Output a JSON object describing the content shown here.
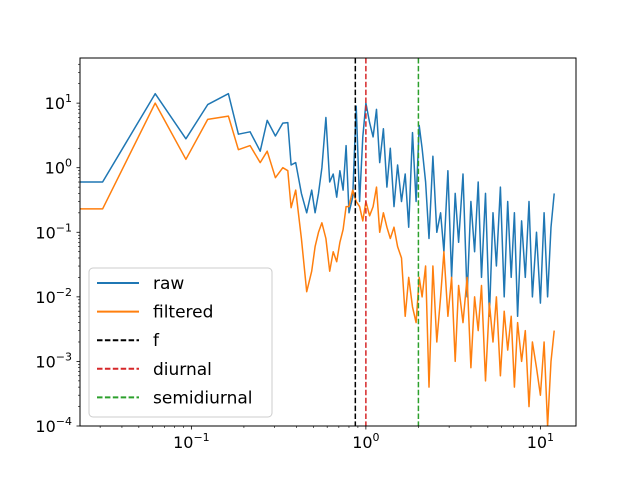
{
  "chart_data": {
    "type": "line",
    "title": "",
    "xlabel": "",
    "ylabel": "",
    "xscale": "log",
    "yscale": "log",
    "xlim": [
      0.023,
      16
    ],
    "ylim": [
      0.0001,
      50
    ],
    "x_tick_labels": [
      {
        "value": 0.1,
        "base": "10",
        "exp": "−1"
      },
      {
        "value": 1,
        "base": "10",
        "exp": "0"
      },
      {
        "value": 10,
        "base": "10",
        "exp": "1"
      }
    ],
    "y_tick_labels": [
      {
        "value": 0.0001,
        "base": "10",
        "exp": "−4"
      },
      {
        "value": 0.001,
        "base": "10",
        "exp": "−3"
      },
      {
        "value": 0.01,
        "base": "10",
        "exp": "−2"
      },
      {
        "value": 0.1,
        "base": "10",
        "exp": "−1"
      },
      {
        "value": 1,
        "base": "10",
        "exp": "0"
      },
      {
        "value": 10,
        "base": "10",
        "exp": "1"
      }
    ],
    "grid": false,
    "legend_position": "lower-left",
    "series": [
      {
        "name": "raw",
        "color": "#1f77b4",
        "x": [
          0.023,
          0.031,
          0.062,
          0.093,
          0.124,
          0.163,
          0.186,
          0.217,
          0.248,
          0.272,
          0.303,
          0.334,
          0.357,
          0.373,
          0.396,
          0.427,
          0.458,
          0.489,
          0.512,
          0.535,
          0.56,
          0.59,
          0.62,
          0.65,
          0.68,
          0.71,
          0.74,
          0.77,
          0.8,
          0.84,
          0.88,
          0.92,
          0.96,
          1.0,
          1.05,
          1.1,
          1.15,
          1.2,
          1.26,
          1.32,
          1.38,
          1.45,
          1.52,
          1.6,
          1.68,
          1.76,
          1.85,
          1.94,
          2.02,
          2.1,
          2.2,
          2.3,
          2.42,
          2.55,
          2.68,
          2.8,
          2.95,
          3.1,
          3.25,
          3.4,
          3.6,
          3.8,
          4.0,
          4.2,
          4.4,
          4.6,
          4.85,
          5.1,
          5.35,
          5.6,
          5.9,
          6.2,
          6.5,
          6.8,
          7.1,
          7.4,
          7.8,
          8.2,
          8.6,
          9.0,
          9.5,
          10.0,
          10.5,
          11.0,
          11.5,
          12.0
        ],
        "y": [
          0.6,
          0.6,
          14,
          2.8,
          9.5,
          14,
          3.3,
          3.6,
          1.8,
          5.4,
          3.1,
          4.9,
          5.0,
          1.1,
          1.2,
          0.4,
          0.2,
          0.45,
          0.2,
          0.4,
          1.0,
          6.0,
          0.6,
          0.8,
          0.35,
          0.9,
          0.45,
          2.2,
          0.2,
          0.35,
          9.0,
          0.3,
          3.0,
          10.0,
          5.0,
          3.0,
          8.0,
          1.2,
          4.0,
          0.5,
          2.0,
          0.25,
          1.1,
          0.3,
          0.8,
          0.12,
          3.5,
          0.3,
          4.5,
          2.0,
          0.6,
          0.08,
          1.5,
          0.1,
          0.2,
          0.05,
          0.9,
          0.02,
          0.4,
          0.07,
          0.8,
          0.01,
          0.3,
          0.05,
          0.6,
          0.02,
          0.4,
          0.005,
          0.2,
          0.03,
          0.5,
          0.01,
          0.3,
          0.02,
          0.2,
          0.005,
          0.15,
          0.02,
          0.3,
          0.01,
          0.1,
          0.008,
          0.2,
          0.01,
          0.12,
          0.4
        ]
      },
      {
        "name": "filtered",
        "color": "#ff7f0e",
        "x": [
          0.023,
          0.031,
          0.062,
          0.093,
          0.124,
          0.163,
          0.186,
          0.217,
          0.248,
          0.272,
          0.303,
          0.334,
          0.357,
          0.373,
          0.396,
          0.427,
          0.458,
          0.489,
          0.512,
          0.535,
          0.56,
          0.59,
          0.62,
          0.65,
          0.68,
          0.71,
          0.74,
          0.77,
          0.8,
          0.84,
          0.88,
          0.92,
          0.96,
          1.0,
          1.05,
          1.1,
          1.15,
          1.2,
          1.26,
          1.32,
          1.38,
          1.45,
          1.52,
          1.6,
          1.68,
          1.76,
          1.85,
          1.94,
          2.02,
          2.1,
          2.2,
          2.3,
          2.42,
          2.55,
          2.68,
          2.8,
          2.95,
          3.1,
          3.25,
          3.4,
          3.6,
          3.8,
          4.0,
          4.2,
          4.4,
          4.6,
          4.85,
          5.1,
          5.35,
          5.6,
          5.9,
          6.2,
          6.5,
          6.8,
          7.1,
          7.4,
          7.8,
          8.2,
          8.6,
          9.0,
          9.5,
          10.0,
          10.5,
          11.0,
          11.5,
          12.0
        ],
        "y": [
          0.23,
          0.23,
          10,
          1.35,
          5.6,
          6.3,
          1.9,
          2.2,
          1.2,
          1.8,
          0.7,
          1.0,
          0.9,
          0.24,
          0.45,
          0.08,
          0.012,
          0.025,
          0.06,
          0.1,
          0.14,
          0.08,
          0.025,
          0.05,
          0.035,
          0.07,
          0.11,
          0.25,
          0.25,
          0.45,
          0.3,
          0.25,
          0.15,
          0.3,
          0.18,
          0.25,
          0.5,
          0.1,
          0.2,
          0.12,
          0.08,
          0.12,
          0.06,
          0.04,
          0.005,
          0.02,
          0.007,
          0.004,
          0.02,
          0.01,
          0.03,
          0.0004,
          0.03,
          0.002,
          0.01,
          0.05,
          0.005,
          0.02,
          0.001,
          0.015,
          0.004,
          0.02,
          0.0008,
          0.01,
          0.003,
          0.015,
          0.0005,
          0.008,
          0.002,
          0.01,
          0.0006,
          0.006,
          0.0015,
          0.005,
          0.0004,
          0.004,
          0.001,
          0.003,
          0.0002,
          0.002,
          0.0008,
          0.0003,
          0.002,
          0.0001,
          0.001,
          0.003
        ]
      }
    ],
    "vlines": [
      {
        "name": "f",
        "x": 0.87,
        "color": "#000000"
      },
      {
        "name": "diurnal",
        "x": 1.0,
        "color": "#d62728"
      },
      {
        "name": "semidiurnal",
        "x": 2.0,
        "color": "#2ca02c"
      }
    ]
  }
}
